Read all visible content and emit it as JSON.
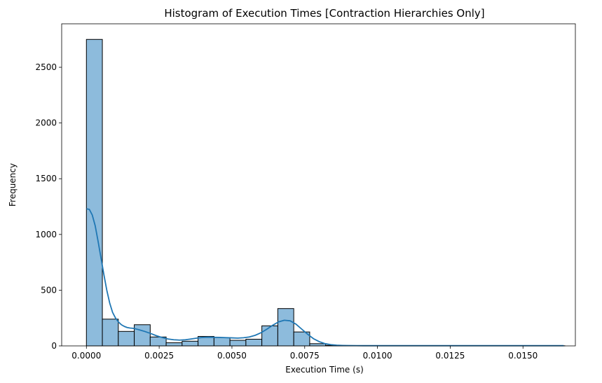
{
  "chart_data": {
    "type": "bar",
    "title": "Histogram of Execution Times [Contraction Hierarchies Only]",
    "xlabel": "Execution Time (s)",
    "ylabel": "Frequency",
    "xlim": [
      -0.00085,
      0.0168
    ],
    "ylim": [
      0,
      2890
    ],
    "xticks": [
      0.0,
      0.0025,
      0.005,
      0.0075,
      0.01,
      0.0125,
      0.015
    ],
    "xtick_labels": [
      "0.0000",
      "0.0025",
      "0.0050",
      "0.0075",
      "0.0100",
      "0.0125",
      "0.0150"
    ],
    "yticks": [
      0,
      500,
      1000,
      1500,
      2000,
      2500
    ],
    "ytick_labels": [
      "0",
      "500",
      "1000",
      "1500",
      "2000",
      "2500"
    ],
    "grid": false,
    "bins": {
      "start": 0.0,
      "width": 0.000548,
      "counts": [
        2750,
        240,
        130,
        190,
        80,
        28,
        42,
        85,
        75,
        50,
        60,
        180,
        335,
        125,
        20,
        5,
        3,
        2,
        1,
        1,
        1,
        1,
        1,
        1,
        1,
        1,
        1,
        1,
        1,
        1
      ]
    },
    "kde": {
      "x": [
        0.0,
        0.0001,
        0.0002,
        0.0003,
        0.0004,
        0.0005,
        0.0006,
        0.0007,
        0.0008,
        0.0009,
        0.001,
        0.0011,
        0.0012,
        0.0013,
        0.0014,
        0.0015,
        0.0016,
        0.0017,
        0.0018,
        0.002,
        0.0022,
        0.0024,
        0.0026,
        0.0028,
        0.003,
        0.0032,
        0.0034,
        0.0036,
        0.0038,
        0.004,
        0.0042,
        0.0044,
        0.0046,
        0.0048,
        0.005,
        0.0052,
        0.0054,
        0.0056,
        0.0058,
        0.006,
        0.0062,
        0.0064,
        0.0066,
        0.0068,
        0.007,
        0.0072,
        0.0074,
        0.0076,
        0.0078,
        0.008,
        0.0082,
        0.0084,
        0.0086,
        0.0088,
        0.009,
        0.0095,
        0.01,
        0.011,
        0.012,
        0.013,
        0.014,
        0.015,
        0.0164
      ],
      "y": [
        1230,
        1225,
        1175,
        1080,
        940,
        790,
        640,
        500,
        385,
        300,
        250,
        215,
        190,
        175,
        165,
        160,
        158,
        152,
        145,
        130,
        112,
        92,
        75,
        62,
        55,
        52,
        55,
        62,
        70,
        76,
        78,
        77,
        76,
        74,
        72,
        70,
        73,
        80,
        95,
        118,
        150,
        185,
        215,
        230,
        225,
        195,
        150,
        105,
        65,
        38,
        20,
        11,
        6,
        4,
        3,
        2,
        2,
        2,
        2,
        2,
        2,
        2,
        2
      ]
    }
  },
  "colors": {
    "bar_fill": "#8dbbdc",
    "bar_edge": "#000000",
    "kde_line": "#1f77b4"
  }
}
